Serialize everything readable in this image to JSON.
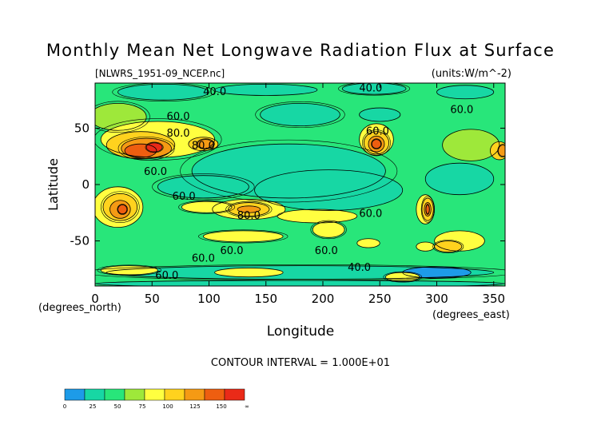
{
  "chart_data": {
    "type": "heatmap",
    "title": "Monthly Mean Net Longwave Radiation Flux at Surface",
    "file_label": "[NLWRS_1951-09_NCEP.nc]",
    "units_label": "(units:W/m^-2)",
    "xlabel": "Longitude",
    "xunit_label": "(degrees_east)",
    "ylabel": "Latitude",
    "yunit_label": "(degrees_north)",
    "xlim": [
      0,
      360
    ],
    "ylim": [
      -90,
      90
    ],
    "x_ticks": [
      0,
      50,
      100,
      150,
      200,
      250,
      300,
      350
    ],
    "y_ticks": [
      50,
      0,
      -50
    ],
    "x_tick_labels": [
      "0",
      "50",
      "100",
      "150",
      "200",
      "250",
      "300",
      "350"
    ],
    "y_tick_labels": [
      "50",
      "0",
      "-50"
    ],
    "contour_interval_text": "CONTOUR INTERVAL = 1.000E+01",
    "contour_labels": [
      {
        "text": "40.0",
        "lon": 105,
        "lat": 83
      },
      {
        "text": "40.0",
        "lon": 242,
        "lat": 86
      },
      {
        "text": "60.0",
        "lon": 73,
        "lat": 61
      },
      {
        "text": "60.0",
        "lon": 248,
        "lat": 48
      },
      {
        "text": "60.0",
        "lon": 322,
        "lat": 67
      },
      {
        "text": "80.0",
        "lon": 73,
        "lat": 46
      },
      {
        "text": "60.0",
        "lon": 53,
        "lat": 12
      },
      {
        "text": "80.0",
        "lon": 95,
        "lat": 35
      },
      {
        "text": "60.0",
        "lon": 78,
        "lat": -10
      },
      {
        "text": "80.0",
        "lon": 135,
        "lat": -27
      },
      {
        "text": "60.0",
        "lon": 242,
        "lat": -25
      },
      {
        "text": "60.0",
        "lon": 120,
        "lat": -58
      },
      {
        "text": "60.0",
        "lon": 203,
        "lat": -58
      },
      {
        "text": "60.0",
        "lon": 95,
        "lat": -65
      },
      {
        "text": "40.0",
        "lon": 232,
        "lat": -73
      },
      {
        "text": "60.0",
        "lon": 63,
        "lat": -80
      }
    ],
    "colorbar": {
      "colors": [
        "#1d9be8",
        "#17d7a4",
        "#28e67a",
        "#9ee83a",
        "#ffff40",
        "#ffd21e",
        "#f59a14",
        "#ee5e10",
        "#ea2a18"
      ],
      "labels": [
        "0",
        "25",
        "50",
        "75",
        "100",
        "125",
        "150",
        "∞"
      ]
    }
  }
}
